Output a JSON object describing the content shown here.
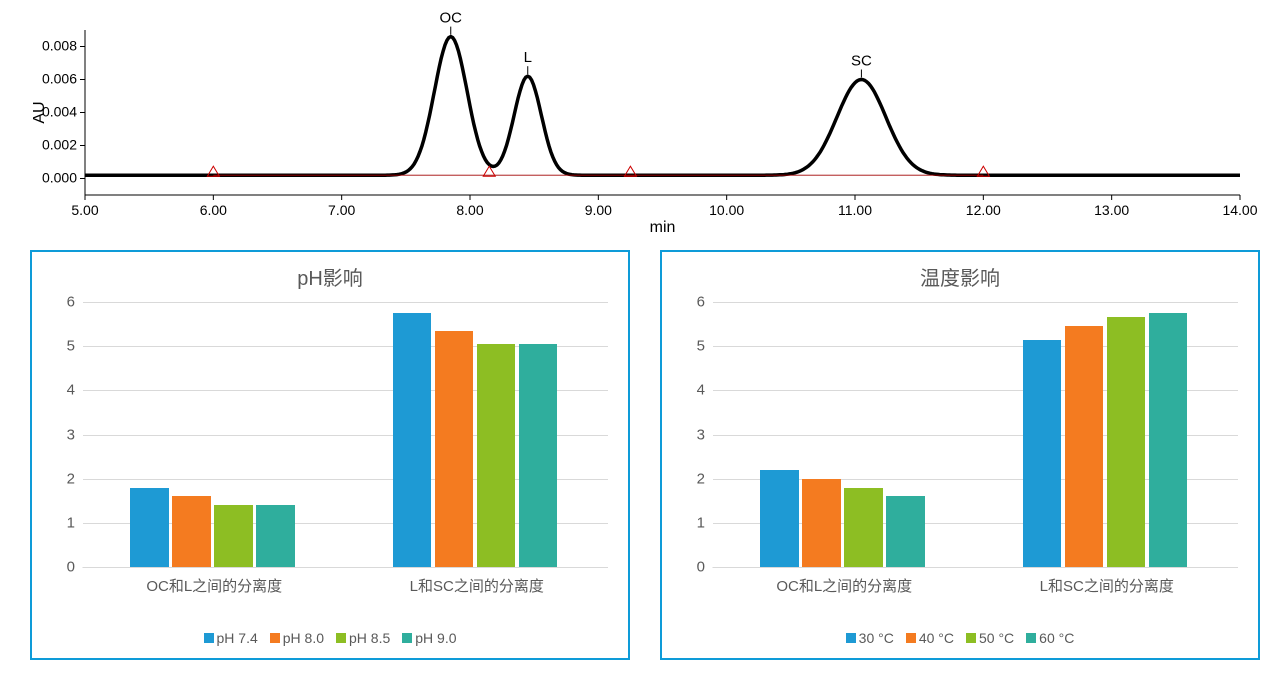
{
  "chromatogram": {
    "ylabel": "AU",
    "xlabel": "min",
    "xlim": [
      5.0,
      14.0
    ],
    "ylim": [
      -0.001,
      0.009
    ],
    "xticks": [
      5.0,
      6.0,
      7.0,
      8.0,
      9.0,
      10.0,
      11.0,
      12.0,
      13.0,
      14.0
    ],
    "yticks": [
      0.0,
      0.002,
      0.004,
      0.006,
      0.008
    ],
    "xtick_labels": [
      "5.00",
      "6.00",
      "7.00",
      "8.00",
      "9.00",
      "10.00",
      "11.00",
      "12.00",
      "13.00",
      "14.00"
    ],
    "ytick_labels": [
      "0.000",
      "0.002",
      "0.004",
      "0.006",
      "0.008"
    ],
    "peaks": [
      {
        "label": "OC",
        "x": 7.85,
        "height": 0.0084,
        "width": 0.3
      },
      {
        "label": "L",
        "x": 8.45,
        "height": 0.006,
        "width": 0.25
      },
      {
        "label": "SC",
        "x": 11.05,
        "height": 0.0058,
        "width": 0.45
      }
    ],
    "baseline": 0.0002,
    "trace_color": "#000000",
    "fit_color": "#a00000",
    "marker_color": "#cc0000",
    "markers_x": [
      6.0,
      8.15,
      9.25,
      12.0
    ],
    "label_fontsize": 16,
    "tick_fontsize": 14,
    "peak_label_fontsize": 15
  },
  "left_chart": {
    "title": "pH影响",
    "type": "bar",
    "categories": [
      "OC和L之间的分离度",
      "L和SC之间的分离度"
    ],
    "series": [
      {
        "label": "pH 7.4",
        "color": "#1E9AD4",
        "values": [
          1.8,
          5.75
        ]
      },
      {
        "label": "pH 8.0",
        "color": "#F47B20",
        "values": [
          1.6,
          5.35
        ]
      },
      {
        "label": "pH 8.5",
        "color": "#8DBE23",
        "values": [
          1.4,
          5.05
        ]
      },
      {
        "label": "pH 9.0",
        "color": "#2FAE9D",
        "values": [
          1.4,
          5.05
        ]
      }
    ],
    "ylim": [
      0,
      6
    ],
    "ytick_step": 1,
    "bar_width": 0.16,
    "group_gap": 0.3,
    "grid_color": "#d9d9d9",
    "title_fontsize": 20,
    "tick_fontsize": 15,
    "legend_fontsize": 14
  },
  "right_chart": {
    "title": "温度影响",
    "type": "bar",
    "categories": [
      "OC和L之间的分离度",
      "L和SC之间的分离度"
    ],
    "series": [
      {
        "label": "30 °C",
        "color": "#1E9AD4",
        "values": [
          2.2,
          5.15
        ]
      },
      {
        "label": "40 °C",
        "color": "#F47B20",
        "values": [
          2.0,
          5.45
        ]
      },
      {
        "label": "50 °C",
        "color": "#8DBE23",
        "values": [
          1.8,
          5.65
        ]
      },
      {
        "label": "60 °C",
        "color": "#2FAE9D",
        "values": [
          1.6,
          5.75
        ]
      }
    ],
    "ylim": [
      0,
      6
    ],
    "ytick_step": 1,
    "bar_width": 0.16,
    "group_gap": 0.3,
    "grid_color": "#d9d9d9",
    "title_fontsize": 20,
    "tick_fontsize": 15,
    "legend_fontsize": 14
  }
}
